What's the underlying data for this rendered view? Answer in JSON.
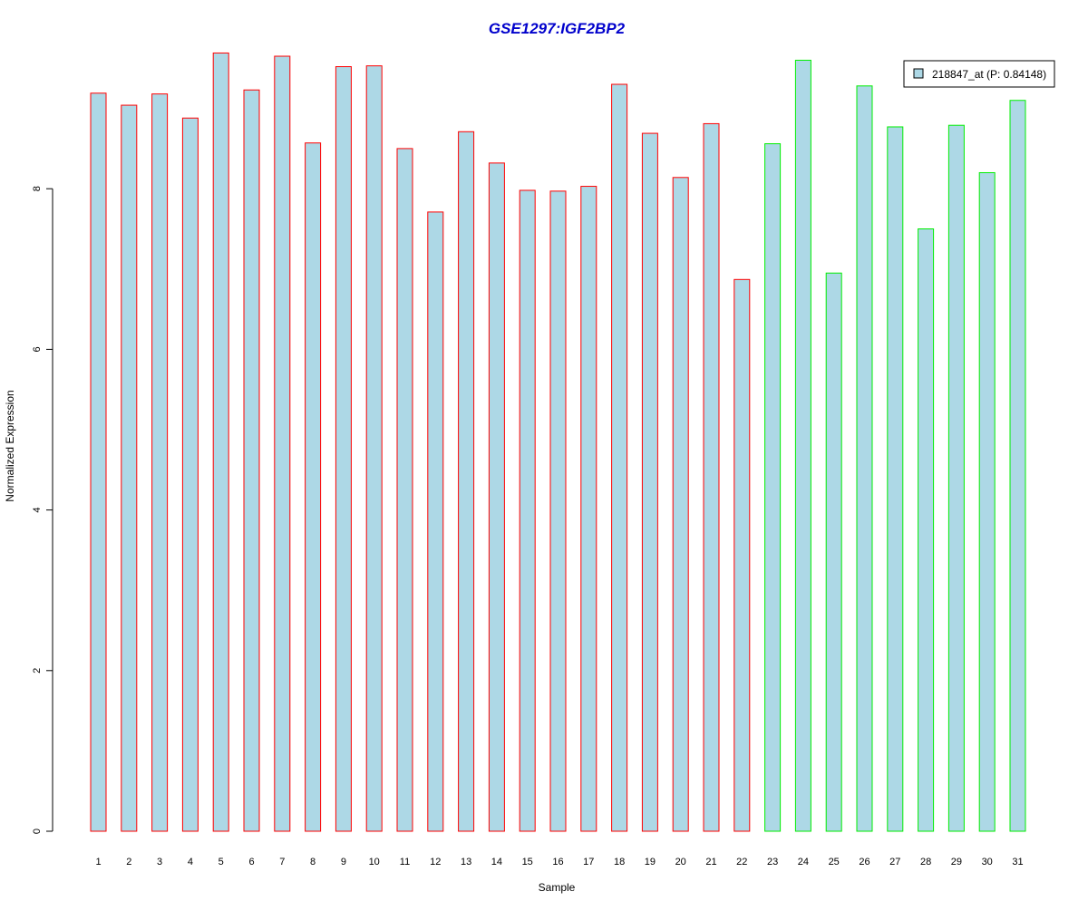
{
  "chart_data": {
    "type": "bar",
    "title": "GSE1297:IGF2BP2",
    "xlabel": "Sample",
    "ylabel": "Normalized Expression",
    "ylim": [
      0,
      9.7
    ],
    "yticks": [
      0,
      2,
      4,
      6,
      8
    ],
    "grid": false,
    "legend_position": "top-right",
    "legend": {
      "label": "218847_at (P: 0.84148)",
      "fill": "#add8e6"
    },
    "colors": {
      "title": "#0000cc",
      "bar_fill": "#add8e6",
      "group1_border": "#ff0000",
      "group2_border": "#00ee00",
      "axis": "#000000"
    },
    "categories": [
      "1",
      "2",
      "3",
      "4",
      "5",
      "6",
      "7",
      "8",
      "9",
      "10",
      "11",
      "12",
      "13",
      "14",
      "15",
      "16",
      "17",
      "18",
      "19",
      "20",
      "21",
      "22",
      "23",
      "24",
      "25",
      "26",
      "27",
      "28",
      "29",
      "30",
      "31"
    ],
    "groups": [
      1,
      1,
      1,
      1,
      1,
      1,
      1,
      1,
      1,
      1,
      1,
      1,
      1,
      1,
      1,
      1,
      1,
      1,
      1,
      1,
      1,
      1,
      2,
      2,
      2,
      2,
      2,
      2,
      2,
      2,
      2
    ],
    "series": [
      {
        "values": [
          9.19,
          9.04,
          9.18,
          8.88,
          9.69,
          9.23,
          9.65,
          8.57,
          9.52,
          9.53,
          8.5,
          7.71,
          8.71,
          8.32,
          7.98,
          7.97,
          8.03,
          9.3,
          8.69,
          8.14,
          8.81,
          6.87,
          8.56,
          9.6,
          6.95,
          9.28,
          8.77,
          7.5,
          8.79,
          8.2,
          9.1
        ]
      }
    ]
  }
}
